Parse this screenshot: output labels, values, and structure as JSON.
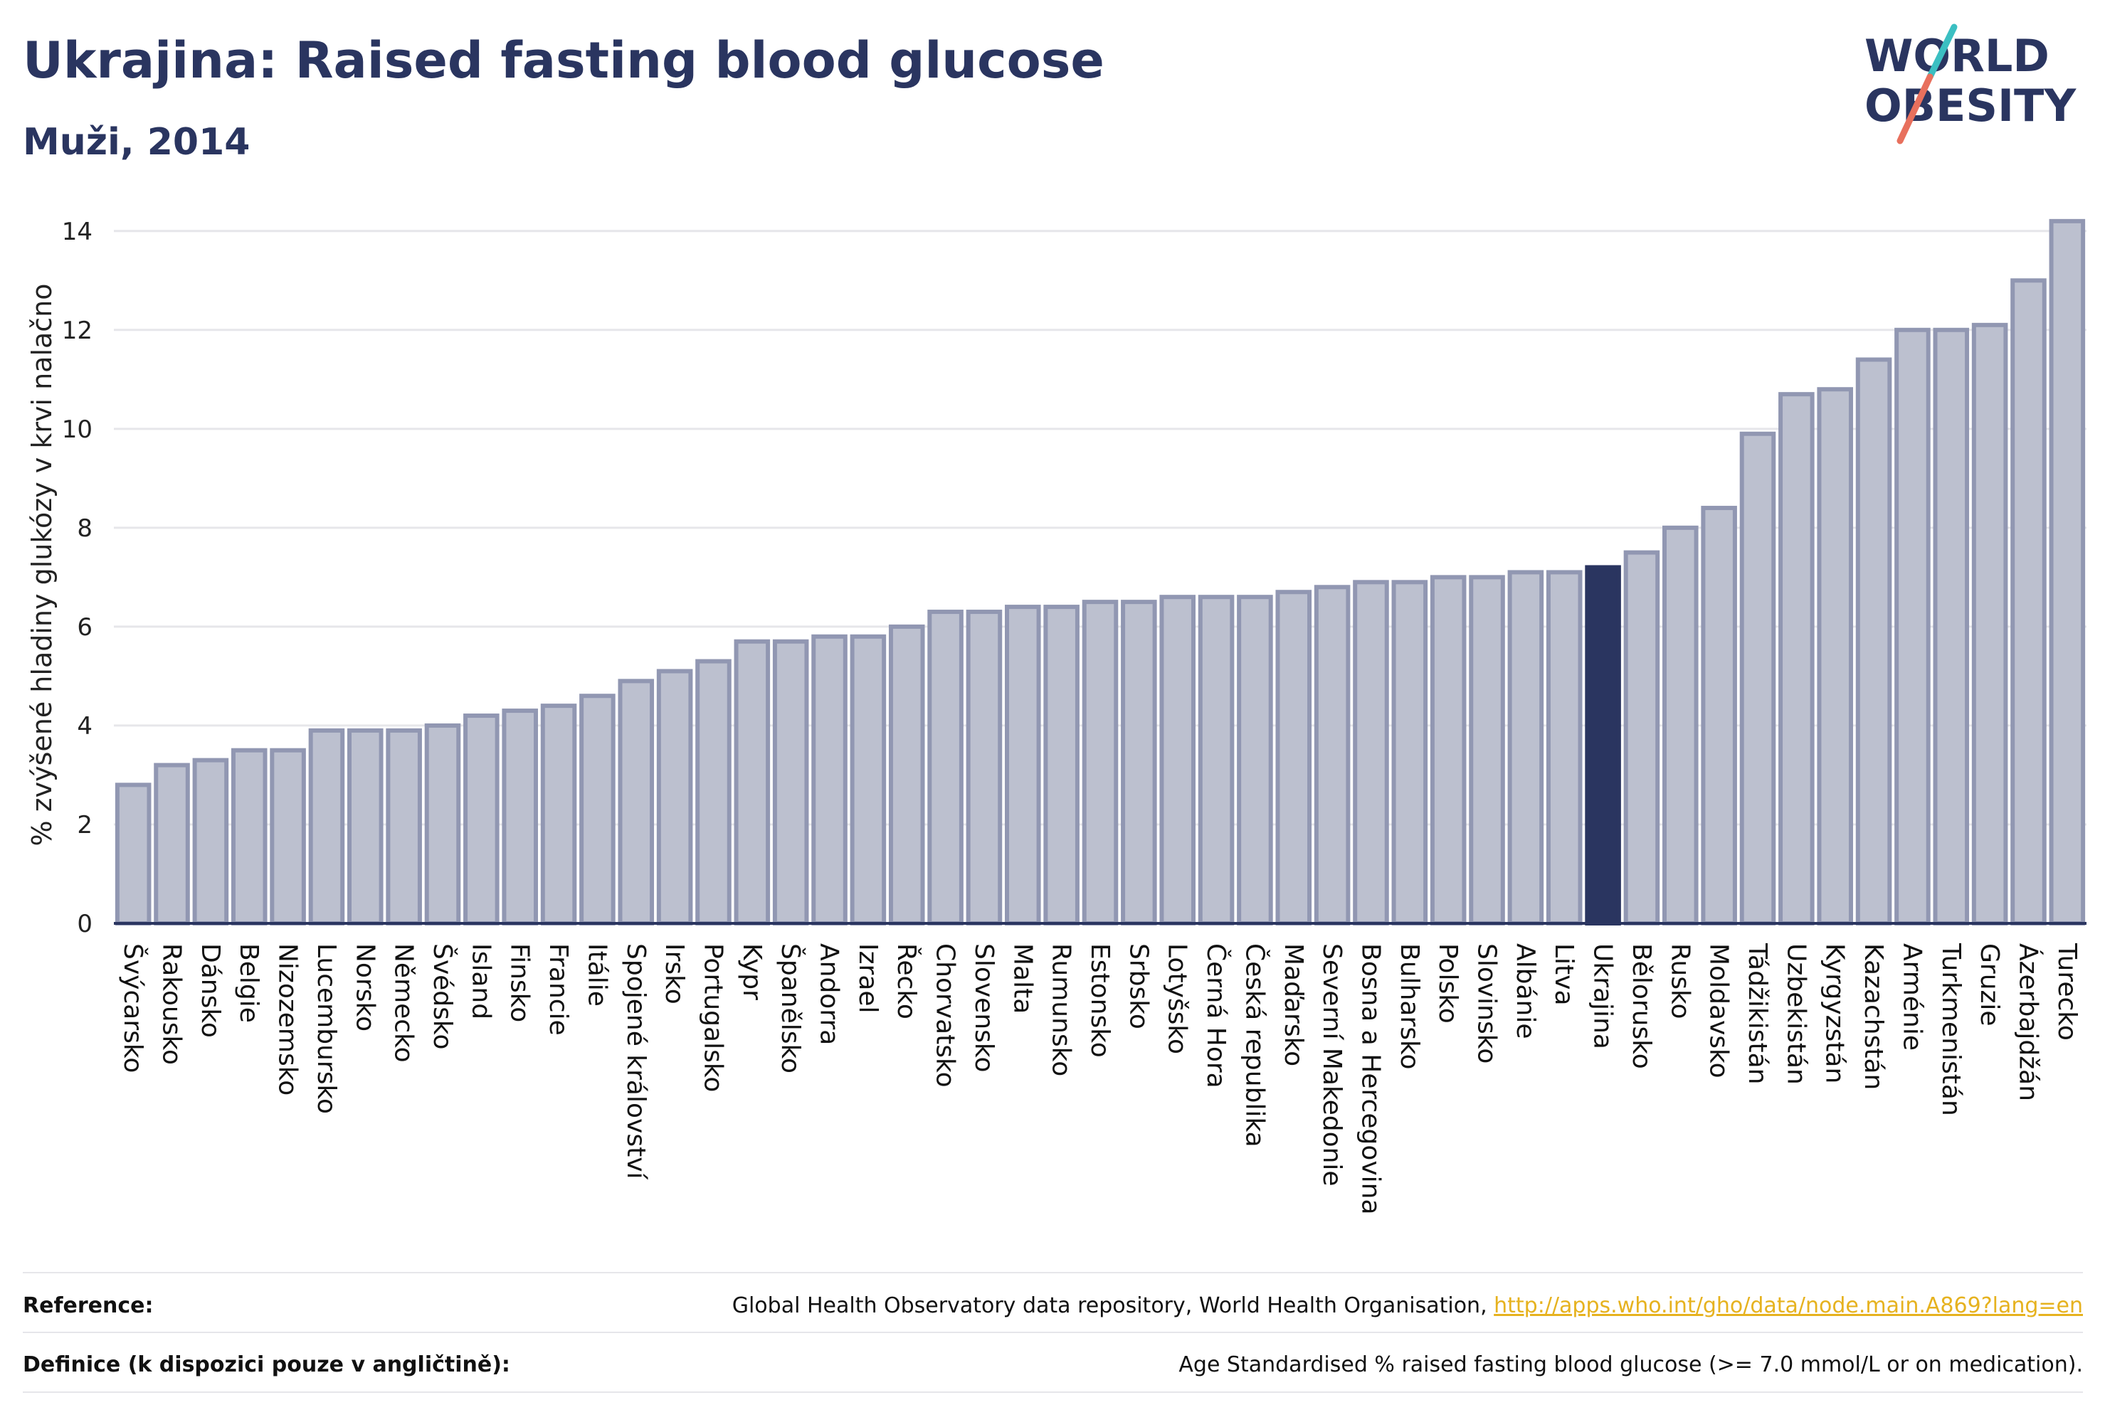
{
  "header": {
    "title": "Ukrajina: Raised fasting blood glucose",
    "subtitle": "Muži, 2014"
  },
  "logo": {
    "line1": "WORLD",
    "line2": "OBESITY"
  },
  "colors": {
    "bar": "#bcc0cf",
    "bar_stroke": "#9197b2",
    "highlight": "#2a3560",
    "grid": "#e6e6ea",
    "axis": "#2a3560",
    "logo_teal": "#3bbfc2",
    "logo_red": "#e8705d"
  },
  "chart_data": {
    "type": "bar",
    "ylabel": "% zvýšené hladiny glukózy v krvi nalačno",
    "ylim": [
      0,
      14.5
    ],
    "yticks": [
      0,
      2,
      4,
      6,
      8,
      10,
      12,
      14
    ],
    "highlight": "Ukrajina",
    "grid": true,
    "categories": [
      "Švýcarsko",
      "Rakousko",
      "Dánsko",
      "Belgie",
      "Nizozemsko",
      "Lucembursko",
      "Norsko",
      "Německo",
      "Švédsko",
      "Island",
      "Finsko",
      "Francie",
      "Itálie",
      "Spojené království",
      "Irsko",
      "Portugalsko",
      "Kypr",
      "Španělsko",
      "Andorra",
      "Izrael",
      "Řecko",
      "Chorvatsko",
      "Slovensko",
      "Malta",
      "Rumunsko",
      "Estonsko",
      "Srbsko",
      "Lotyšsko",
      "Černá Hora",
      "Česká republika",
      "Maďarsko",
      "Severní Makedonie",
      "Bosna a Hercegovina",
      "Bulharsko",
      "Polsko",
      "Slovinsko",
      "Albánie",
      "Litva",
      "Ukrajina",
      "Bělorusko",
      "Rusko",
      "Moldavsko",
      "Tádžikistán",
      "Uzbekistán",
      "Kyrgyzstán",
      "Kazachstán",
      "Arménie",
      "Turkmenistán",
      "Gruzie",
      "Ázerbajdžán",
      "Turecko"
    ],
    "values": [
      2.8,
      3.2,
      3.3,
      3.5,
      3.5,
      3.9,
      3.9,
      3.9,
      4.0,
      4.2,
      4.3,
      4.4,
      4.6,
      4.9,
      5.1,
      5.3,
      5.7,
      5.7,
      5.8,
      5.8,
      6.0,
      6.3,
      6.3,
      6.4,
      6.4,
      6.5,
      6.5,
      6.6,
      6.6,
      6.6,
      6.7,
      6.8,
      6.9,
      6.9,
      7.0,
      7.0,
      7.1,
      7.1,
      7.2,
      7.5,
      8.0,
      8.4,
      9.9,
      10.7,
      10.8,
      11.4,
      12.0,
      12.0,
      12.1,
      13.0,
      14.2
    ]
  },
  "footer": {
    "reference_label": "Reference:",
    "reference_text": "Global Health Observatory data repository, World Health Organisation, ",
    "reference_link": "http://apps.who.int/gho/data/node.main.A869?lang=en",
    "definition_label": "Definice (k dispozici pouze v angličtině):",
    "definition_text": "Age Standardised % raised fasting blood glucose (>= 7.0 mmol/L or on medication)."
  }
}
